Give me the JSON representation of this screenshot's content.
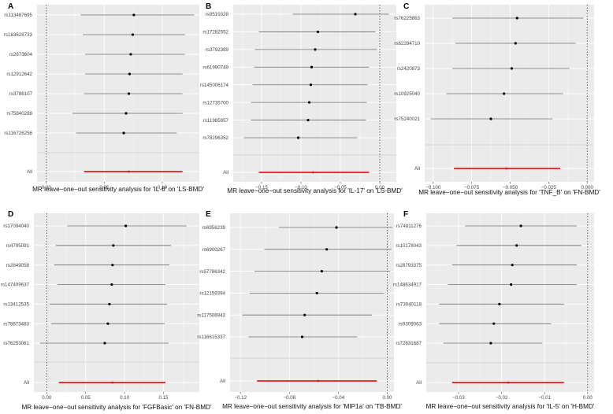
{
  "chart_data": [
    {
      "panel": "A",
      "type": "forest",
      "xlabel": "MR leave−one−out sensitivity analysis for 'IL-8' on 'LS-BMD'",
      "xlim": [
        -0.008,
        0.132
      ],
      "ticks": [
        0.0,
        0.05,
        0.1
      ],
      "tick_labels": [
        "0.00",
        "0.05",
        "0.10"
      ],
      "snps": [
        {
          "name": "rs113487695",
          "est": 0.0755,
          "lo": 0.0295,
          "hi": 0.1275
        },
        {
          "name": "rs183628733",
          "est": 0.0745,
          "lo": 0.0315,
          "hi": 0.1195
        },
        {
          "name": "rs2673604",
          "est": 0.0728,
          "lo": 0.0335,
          "hi": 0.1195
        },
        {
          "name": "rs12912642",
          "est": 0.0718,
          "lo": 0.0335,
          "hi": 0.1175
        },
        {
          "name": "rs3786107",
          "est": 0.0712,
          "lo": 0.0325,
          "hi": 0.1175
        },
        {
          "name": "rs75840288",
          "est": 0.0688,
          "lo": 0.0225,
          "hi": 0.1175
        },
        {
          "name": "rs116726256",
          "est": 0.0668,
          "lo": 0.0255,
          "hi": 0.1125
        }
      ],
      "all": {
        "name": "All",
        "est": 0.0712,
        "lo": 0.0325,
        "hi": 0.1175
      }
    },
    {
      "panel": "B",
      "type": "forest",
      "xlabel": "MR leave−one−out sensitivity analysis for 'IL-17' on 'LS-BMD'",
      "xlim": [
        -0.186,
        0.021
      ],
      "ticks": [
        -0.15,
        -0.1,
        -0.05,
        0.0
      ],
      "tick_labels": [
        "−0.15",
        "−0.10",
        "−0.05",
        "0.00"
      ],
      "snps": [
        {
          "name": "rs9519328",
          "est": -0.031,
          "lo": -0.1105,
          "hi": 0.0115
        },
        {
          "name": "rs17282552",
          "est": -0.0785,
          "lo": -0.1535,
          "hi": -0.0055
        },
        {
          "name": "rs3792369",
          "est": -0.082,
          "lo": -0.1585,
          "hi": -0.0035
        },
        {
          "name": "rs61990749",
          "est": -0.0865,
          "lo": -0.1595,
          "hi": -0.0135
        },
        {
          "name": "rs145006174",
          "est": -0.0875,
          "lo": -0.1615,
          "hi": -0.0155
        },
        {
          "name": "rs12735700",
          "est": -0.0895,
          "lo": -0.1635,
          "hi": -0.0165
        },
        {
          "name": "rs11985957",
          "est": -0.091,
          "lo": -0.1635,
          "hi": -0.0175
        },
        {
          "name": "rs78296352",
          "est": -0.1035,
          "lo": -0.1725,
          "hi": -0.0285
        }
      ],
      "all": {
        "name": "All",
        "est": -0.0845,
        "lo": -0.1535,
        "hi": -0.0135
      }
    },
    {
      "panel": "C",
      "type": "forest",
      "xlabel": "MR leave−one−out sensitivity analysis for 'TNF_B' on 'FN-BMD'",
      "xlim": [
        -0.1055,
        0.0045
      ],
      "ticks": [
        -0.1,
        -0.075,
        -0.05,
        -0.025,
        0.0
      ],
      "tick_labels": [
        "−0.100",
        "−0.075",
        "−0.050",
        "−0.025",
        "0.000"
      ],
      "snps": [
        {
          "name": "rs76225863",
          "est": -0.0455,
          "lo": -0.0875,
          "hi": -0.0025
        },
        {
          "name": "rs62284710",
          "est": -0.0465,
          "lo": -0.0855,
          "hi": -0.0075
        },
        {
          "name": "rs2420873",
          "est": -0.049,
          "lo": -0.0875,
          "hi": -0.0115
        },
        {
          "name": "rs10925040",
          "est": -0.054,
          "lo": -0.0915,
          "hi": -0.0155
        },
        {
          "name": "rs75240021",
          "est": -0.0625,
          "lo": -0.1015,
          "hi": -0.0225
        }
      ],
      "all": {
        "name": "All",
        "est": -0.0525,
        "lo": -0.0865,
        "hi": -0.0175
      }
    },
    {
      "panel": "D",
      "type": "forest",
      "xlabel": "MR leave−one−out sensitivity analysis for 'FGFBasic' on 'FN-BMD'",
      "xlim": [
        -0.0165,
        0.196
      ],
      "ticks": [
        0.0,
        0.05,
        0.1,
        0.15
      ],
      "tick_labels": [
        "0.00",
        "0.05",
        "0.10",
        "0.15"
      ],
      "snps": [
        {
          "name": "rs17094040",
          "est": 0.1015,
          "lo": 0.0265,
          "hi": 0.1795
        },
        {
          "name": "rs4795091",
          "est": 0.0855,
          "lo": 0.0115,
          "hi": 0.1595
        },
        {
          "name": "rs2849058",
          "est": 0.0845,
          "lo": 0.0095,
          "hi": 0.1575
        },
        {
          "name": "rs147409637",
          "est": 0.0835,
          "lo": 0.0135,
          "hi": 0.1525
        },
        {
          "name": "rs13412535",
          "est": 0.0805,
          "lo": 0.0035,
          "hi": 0.1545
        },
        {
          "name": "rs78873483",
          "est": 0.0785,
          "lo": 0.0055,
          "hi": 0.1515
        },
        {
          "name": "rs76253061",
          "est": 0.0745,
          "lo": -0.0085,
          "hi": 0.1565
        }
      ],
      "all": {
        "name": "All",
        "est": 0.0845,
        "lo": 0.0155,
        "hi": 0.1525
      }
    },
    {
      "panel": "E",
      "type": "forest",
      "xlabel": "MR leave−one−out sensitivity analysis for 'MIP1a' on 'TB-BMD'",
      "xlim": [
        -0.1285,
        0.0055
      ],
      "ticks": [
        -0.12,
        -0.08,
        -0.04,
        0.0
      ],
      "tick_labels": [
        "−0.12",
        "−0.08",
        "−0.04",
        "0.00"
      ],
      "snps": [
        {
          "name": "rs6956239",
          "est": -0.0415,
          "lo": -0.0885,
          "hi": 0.0045
        },
        {
          "name": "rs6900267",
          "est": -0.0495,
          "lo": -0.1005,
          "hi": 0.0035
        },
        {
          "name": "rs57786342",
          "est": -0.0535,
          "lo": -0.1085,
          "hi": 0.0025
        },
        {
          "name": "rs12159394",
          "est": -0.0575,
          "lo": -0.1125,
          "hi": -0.0025
        },
        {
          "name": "rs117506943",
          "est": -0.0675,
          "lo": -0.1185,
          "hi": -0.0125
        },
        {
          "name": "rs116615337",
          "est": -0.0695,
          "lo": -0.1135,
          "hi": -0.0245
        }
      ],
      "all": {
        "name": "All",
        "est": -0.0565,
        "lo": -0.1065,
        "hi": -0.0085
      }
    },
    {
      "panel": "F",
      "type": "forest",
      "xlabel": "MR leave−one−out sensitivity analysis for 'IL-5' on 'H-BMD'",
      "xlim": [
        -0.0375,
        0.0015
      ],
      "ticks": [
        -0.03,
        -0.02,
        -0.01,
        0.0
      ],
      "tick_labels": [
        "−0.03",
        "−0.02",
        "−0.01",
        "0.00"
      ],
      "snps": [
        {
          "name": "rs74811276",
          "est": -0.0155,
          "lo": -0.0285,
          "hi": -0.0025
        },
        {
          "name": "rs10178043",
          "est": -0.0165,
          "lo": -0.0305,
          "hi": -0.0015
        },
        {
          "name": "rs28793375",
          "est": -0.0175,
          "lo": -0.0315,
          "hi": -0.0025
        },
        {
          "name": "rs148634917",
          "est": -0.0178,
          "lo": -0.0325,
          "hi": -0.0025
        },
        {
          "name": "rs73040118",
          "est": -0.0205,
          "lo": -0.0345,
          "hi": -0.0055
        },
        {
          "name": "rs9309063",
          "est": -0.0218,
          "lo": -0.0345,
          "hi": -0.0085
        },
        {
          "name": "rs72831687",
          "est": -0.0225,
          "lo": -0.0335,
          "hi": -0.0105
        }
      ],
      "all": {
        "name": "All",
        "est": -0.0185,
        "lo": -0.0315,
        "hi": -0.0055
      }
    }
  ]
}
